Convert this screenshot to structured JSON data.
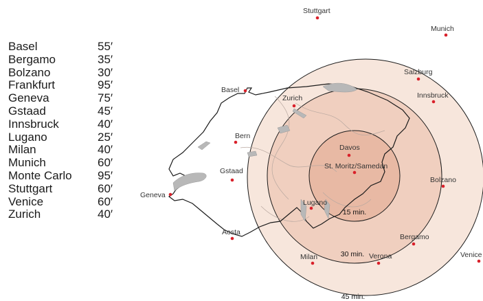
{
  "flight_times": [
    {
      "city": "Basel",
      "time": "55′"
    },
    {
      "city": "Bergamo",
      "time": "35′"
    },
    {
      "city": "Bolzano",
      "time": "30′"
    },
    {
      "city": "Frankfurt",
      "time": "95′"
    },
    {
      "city": "Geneva",
      "time": "75′"
    },
    {
      "city": "Gstaad",
      "time": "45′"
    },
    {
      "city": "Innsbruck",
      "time": "40′"
    },
    {
      "city": "Lugano",
      "time": "25′"
    },
    {
      "city": "Milan",
      "time": "40′"
    },
    {
      "city": "Munich",
      "time": "60′"
    },
    {
      "city": "Monte Carlo",
      "time": "95′"
    },
    {
      "city": "Stuttgart",
      "time": "60′"
    },
    {
      "city": "Venice",
      "time": "60′"
    },
    {
      "city": "Zurich",
      "time": "40′"
    }
  ],
  "map": {
    "rings": [
      {
        "label": "15 min.",
        "color": "#e8b9a4"
      },
      {
        "label": "30 min.",
        "color": "#f0cfbf"
      },
      {
        "label": "45 min.",
        "color": "#f7e6dc"
      }
    ],
    "cities": [
      "Stuttgart",
      "Munich",
      "Salzburg",
      "Innsbruck",
      "Basel",
      "Zurich",
      "Bern",
      "Davos",
      "St. Moritz/Samedan",
      "Gstaad",
      "Bolzano",
      "Geneva",
      "Lugano",
      "Aosta",
      "Bergamo",
      "Milan",
      "Verona",
      "Venice"
    ],
    "marker_color": "#d9202a",
    "border_color": "#222222",
    "lake_color": "#b8b8b8"
  }
}
